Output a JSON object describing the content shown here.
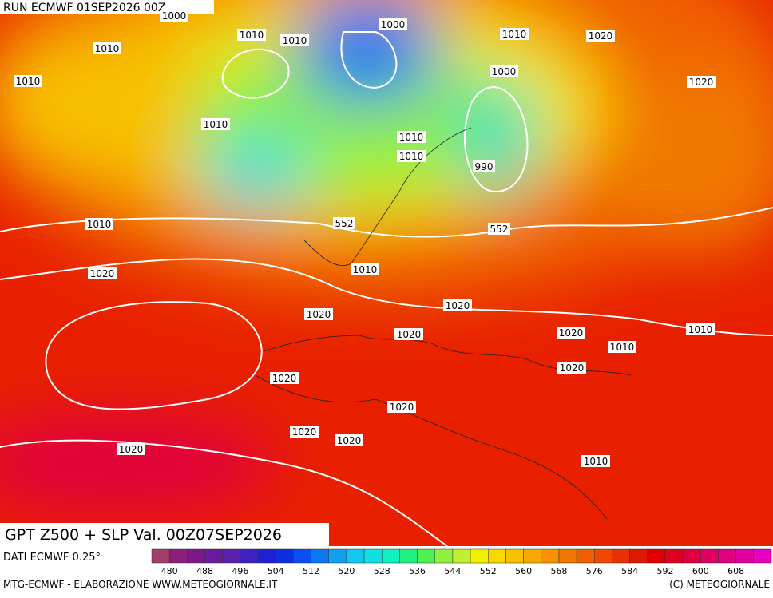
{
  "header": {
    "run": "RUN ECMWF 01SEP2026 00Z"
  },
  "map": {
    "labels": [
      1000,
      1010,
      1010,
      1000,
      1010,
      1020,
      1010,
      1000,
      1010,
      1020,
      1010,
      1010,
      1010,
      990,
      1010,
      552,
      552,
      1010,
      1020,
      1020,
      1020,
      1010,
      1020,
      1020,
      1010,
      1020,
      1020,
      1020,
      1020,
      1020,
      1020,
      1010
    ]
  },
  "title": "GPT Z500 + SLP Val. 00Z07SEP2026",
  "source": "DATI ECMWF 0.25°",
  "colorbar": {
    "labels": [
      480,
      488,
      496,
      504,
      512,
      520,
      528,
      536,
      544,
      552,
      560,
      568,
      576,
      584,
      592,
      600,
      608
    ],
    "colors": [
      "#a0406a",
      "#8a1f7a",
      "#7a1a8a",
      "#6a1a9a",
      "#5a20aa",
      "#4020c0",
      "#2020d0",
      "#0a30e0",
      "#0a50f0",
      "#0a78f0",
      "#10a0f0",
      "#10c8f0",
      "#10e0e0",
      "#10f0c0",
      "#20f080",
      "#50f050",
      "#90f040",
      "#c0f030",
      "#f0f000",
      "#f8d800",
      "#f8c000",
      "#f8a800",
      "#f89000",
      "#f07800",
      "#f06000",
      "#f04800",
      "#e83000",
      "#e01800",
      "#e00000",
      "#e00020",
      "#e00040",
      "#e00060",
      "#e00080",
      "#e000a0",
      "#e800c0"
    ]
  },
  "footer": {
    "left": "MTG-ECMWF - ELABORAZIONE WWW.METEOGIORNALE.IT",
    "right": "(C) METEOGIORNALE"
  }
}
